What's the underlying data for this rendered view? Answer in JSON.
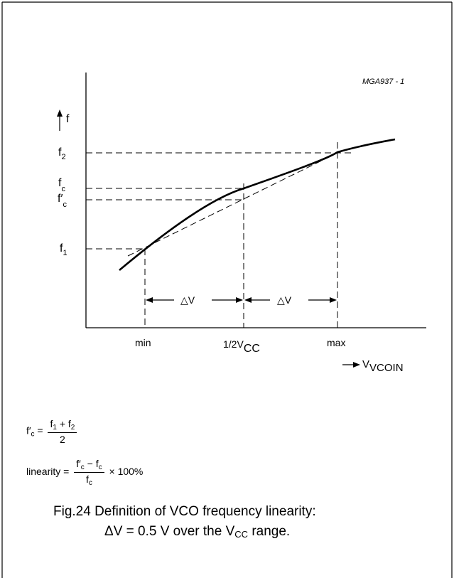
{
  "figure_id": "MGA937 - 1",
  "y_axis": {
    "label": "f"
  },
  "y_marks": {
    "f2": {
      "base": "f",
      "sub": "2"
    },
    "fc": {
      "base": "f",
      "sub": "c"
    },
    "fcp": {
      "base": "f′",
      "sub": "c"
    },
    "f1": {
      "base": "f",
      "sub": "1"
    }
  },
  "x_marks": {
    "min": "min",
    "half": {
      "base": "1/2V",
      "sub": "CC"
    },
    "max": "max"
  },
  "x_axis": {
    "label": {
      "base": "V",
      "sub": "VCOIN"
    }
  },
  "delta_label": "△V",
  "formula1": {
    "lhs": "f′",
    "lhs_sub": "c",
    "eq": "=",
    "num_a": "f",
    "num_a_sub": "1",
    "plus": "+",
    "num_b": "f",
    "num_b_sub": "2",
    "den": "2"
  },
  "formula2": {
    "lhs": "linearity",
    "eq": "=",
    "num_a": "f′",
    "num_a_sub": "c",
    "minus": "−",
    "num_b": "f",
    "num_b_sub": "c",
    "den": "f",
    "den_sub": "c",
    "times": "×",
    "pct": "100%"
  },
  "caption": {
    "line1": "Fig.24  Definition of VCO frequency linearity:",
    "line2_a": "ΔV = 0.5 V over the V",
    "line2_sub": "CC",
    "line2_b": " range."
  }
}
